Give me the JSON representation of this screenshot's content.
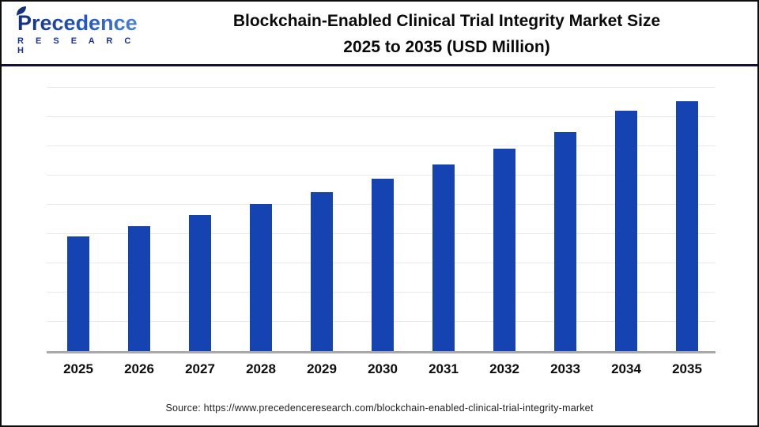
{
  "header": {
    "logo_brand": "Precedence",
    "logo_sub": "R E S E A R C H",
    "title_line1": "Blockchain-Enabled Clinical Trial Integrity Market Size",
    "title_line2": "2025 to 2035 (USD Million)"
  },
  "chart_data": {
    "type": "bar",
    "title": "Blockchain-Enabled Clinical Trial Integrity Market Size 2025 to 2035 (USD Million)",
    "unit": "USD Million",
    "categories": [
      "2025",
      "2026",
      "2027",
      "2028",
      "2029",
      "2030",
      "2031",
      "2032",
      "2033",
      "2034",
      "2035"
    ],
    "values": [
      145,
      158,
      172,
      186,
      201,
      218,
      236,
      256,
      277,
      304,
      316
    ],
    "value_note": "y-axis has no tick labels in the image; values are relative bar heights (px) estimated from the chart",
    "ylim": [
      0,
      345
    ],
    "xlabel": "",
    "ylabel": "",
    "grid": "horizontal-light-gray, 9 lines",
    "legend": "none",
    "bar_color": "#1543b2"
  },
  "footer": {
    "source": "Source: https://www.precedenceresearch.com/blockchain-enabled-clinical-trial-integrity-market"
  },
  "colors": {
    "bar_blue": "#1543b2",
    "separator_navy": "#14103a",
    "gridline_gray": "#e9e9e9",
    "baseline_gray": "#a9a9a9",
    "title_black": "#0a0a0a",
    "logo_blue_dark": "#14307f",
    "logo_blue_light": "#4f8ad2",
    "logo_sub_blue": "#16339c"
  }
}
